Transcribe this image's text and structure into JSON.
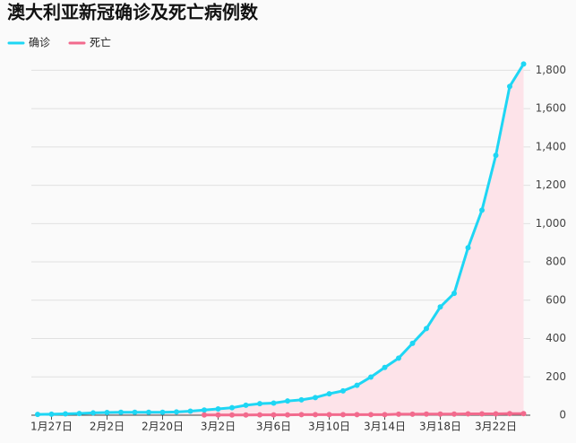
{
  "chart_data": {
    "type": "line",
    "title": "澳大利亚新冠确诊及死亡病例数",
    "categories": [
      null,
      "1月27日",
      null,
      null,
      null,
      "2月2日",
      null,
      null,
      null,
      "2月20日",
      null,
      null,
      null,
      "3月2日",
      null,
      null,
      null,
      "3月6日",
      null,
      null,
      null,
      "3月10日",
      null,
      null,
      null,
      "3月14日",
      null,
      null,
      null,
      "3月18日",
      null,
      null,
      null,
      "3月22日",
      null,
      null
    ],
    "series": [
      {
        "name": "确诊",
        "color": "#1ed6f4",
        "area_color": "#fde3e9",
        "values": [
          4,
          5,
          7,
          9,
          12,
          14,
          15,
          15,
          15,
          15,
          17,
          21,
          27,
          33,
          39,
          52,
          60,
          63,
          74,
          80,
          92,
          112,
          127,
          156,
          199,
          249,
          298,
          375,
          452,
          565,
          636,
          874,
          1070,
          1356,
          1716,
          1833
        ]
      },
      {
        "name": "死亡",
        "color": "#f26a8d",
        "values": [
          null,
          null,
          null,
          null,
          null,
          null,
          null,
          null,
          null,
          null,
          null,
          null,
          1,
          1,
          1,
          1,
          2,
          2,
          2,
          3,
          3,
          3,
          3,
          3,
          3,
          3,
          5,
          5,
          6,
          6,
          6,
          7,
          7,
          7,
          8,
          8
        ]
      }
    ],
    "ylim": [
      0,
      1900
    ],
    "yticks": [
      0,
      200,
      400,
      600,
      800,
      {
        "value": 1000,
        "label": "1,000"
      },
      {
        "value": 1200,
        "label": "1,200"
      },
      {
        "value": 1400,
        "label": "1,400"
      },
      {
        "value": 1600,
        "label": "1,600"
      },
      {
        "value": 1800,
        "label": "1,800"
      }
    ],
    "grid": true,
    "legend": "top-left"
  }
}
